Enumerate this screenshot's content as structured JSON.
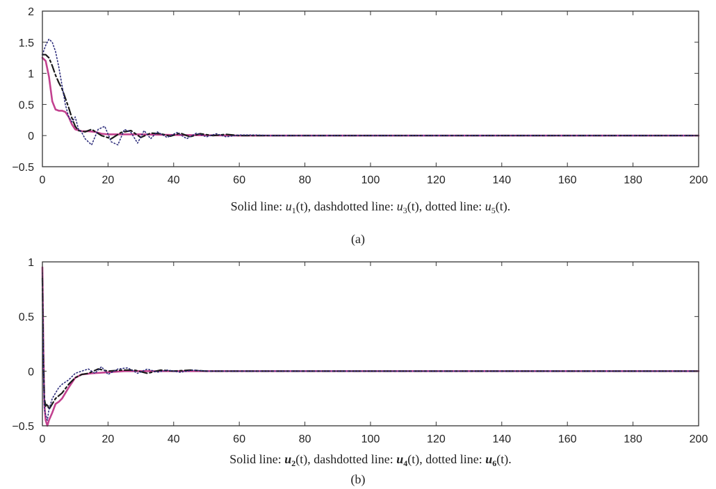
{
  "chart_data": [
    {
      "type": "line",
      "panel_label": "(a)",
      "xlabel": "Solid line: u1(t), dashdotted line: u3(t), dotted line: u5(t).",
      "xlabel_parts": {
        "p1": "Solid line: ",
        "v1": "u",
        "s1": "1",
        "a1": "(t)",
        "p2": ", dashdotted line: ",
        "v2": "u",
        "s2": "3",
        "a2": "(t)",
        "p3": ", dotted line: ",
        "v3": "u",
        "s3": "5",
        "a3": "(t).",
        "subs_bold": false
      },
      "xlim": [
        0,
        200
      ],
      "ylim": [
        -0.5,
        2
      ],
      "xticks": [
        0,
        20,
        40,
        60,
        80,
        100,
        120,
        140,
        160,
        180,
        200
      ],
      "yticks": [
        -0.5,
        0,
        0.5,
        1,
        1.5,
        2
      ],
      "ytick_labels": [
        "−0.5",
        "0",
        "0.5",
        "1",
        "1.5",
        "2"
      ],
      "series": [
        {
          "style": "solid",
          "color": "#c2418f",
          "x": [
            0,
            1,
            2,
            3,
            4,
            5,
            6,
            7,
            8,
            9,
            10,
            12,
            14,
            16,
            18,
            20,
            25,
            30,
            40,
            60,
            200
          ],
          "y": [
            1.25,
            1.2,
            0.95,
            0.55,
            0.42,
            0.4,
            0.4,
            0.38,
            0.3,
            0.18,
            0.1,
            0.07,
            0.07,
            0.06,
            0.03,
            0.02,
            0.02,
            0.02,
            0.01,
            0.0,
            0.0
          ]
        },
        {
          "style": "dashdot",
          "color": "#1a1a1a",
          "x": [
            0,
            1,
            2,
            3,
            4,
            5,
            6,
            7,
            8,
            9,
            10,
            11,
            13,
            15,
            18,
            21,
            24,
            27,
            30,
            33,
            36,
            39,
            42,
            45,
            48,
            52,
            56,
            60,
            70,
            80,
            200
          ],
          "y": [
            1.3,
            1.3,
            1.25,
            1.12,
            0.97,
            0.85,
            0.75,
            0.6,
            0.45,
            0.28,
            0.15,
            0.08,
            0.06,
            0.1,
            0.0,
            -0.05,
            0.05,
            0.08,
            -0.03,
            0.04,
            0.03,
            -0.01,
            0.04,
            -0.02,
            0.03,
            0.0,
            0.02,
            0.0,
            0.0,
            0.0,
            0.0
          ]
        },
        {
          "style": "dotted",
          "color": "#2b2b7a",
          "x": [
            0,
            1,
            2,
            3,
            4,
            5,
            6,
            7,
            8,
            9,
            10,
            11,
            12,
            13,
            15,
            17,
            19,
            21,
            23,
            25,
            27,
            29,
            31,
            33,
            35,
            38,
            41,
            44,
            47,
            50,
            53,
            56,
            60,
            65,
            70,
            200
          ],
          "y": [
            1.3,
            1.45,
            1.55,
            1.5,
            1.35,
            1.1,
            0.8,
            0.5,
            0.3,
            0.22,
            0.3,
            0.1,
            0.05,
            -0.05,
            -0.15,
            0.1,
            0.15,
            -0.1,
            -0.15,
            0.1,
            0.05,
            -0.12,
            0.08,
            -0.05,
            0.06,
            -0.03,
            0.05,
            -0.05,
            0.04,
            -0.02,
            0.03,
            -0.02,
            0.01,
            0.01,
            0.0,
            0.0
          ]
        }
      ]
    },
    {
      "type": "line",
      "panel_label": "(b)",
      "xlabel": "Solid line: u2(t), dashdotted line: u4(t), dotted line: u6(t).",
      "xlabel_parts": {
        "p1": "Solid line: ",
        "v1": "u",
        "s1": "2",
        "a1": "(t)",
        "p2": ", dashdotted line: ",
        "v2": "u",
        "s2": "4",
        "a2": "(t)",
        "p3": ", dotted line: ",
        "v3": "u",
        "s3": "6",
        "a3": "(t).",
        "subs_bold": true
      },
      "xlim": [
        0,
        200
      ],
      "ylim": [
        -0.5,
        1
      ],
      "xticks": [
        0,
        20,
        40,
        60,
        80,
        100,
        120,
        140,
        160,
        180,
        200
      ],
      "yticks": [
        -0.5,
        0,
        0.5,
        1
      ],
      "ytick_labels": [
        "−0.5",
        "0",
        "0.5",
        "1"
      ],
      "series": [
        {
          "style": "solid",
          "color": "#c2418f",
          "x": [
            0,
            0.3,
            0.6,
            1,
            1.5,
            2,
            3,
            4,
            5,
            6,
            8,
            10,
            12,
            15,
            20,
            25,
            30,
            40,
            60,
            200
          ],
          "y": [
            0.95,
            0.2,
            -0.3,
            -0.45,
            -0.5,
            -0.45,
            -0.38,
            -0.3,
            -0.28,
            -0.25,
            -0.15,
            -0.06,
            -0.03,
            -0.02,
            -0.01,
            0.0,
            0.0,
            0.0,
            0.0,
            0.0
          ]
        },
        {
          "style": "dashdot",
          "color": "#1a1a1a",
          "x": [
            0,
            0.3,
            0.6,
            1,
            1.5,
            2,
            3,
            4,
            6,
            8,
            10,
            12,
            14,
            17,
            20,
            24,
            28,
            32,
            36,
            40,
            45,
            50,
            55,
            60,
            70,
            80,
            200
          ],
          "y": [
            0.85,
            0.1,
            -0.25,
            -0.32,
            -0.3,
            -0.35,
            -0.3,
            -0.25,
            -0.2,
            -0.12,
            -0.06,
            -0.03,
            -0.02,
            0.02,
            0.0,
            0.01,
            0.01,
            -0.02,
            0.01,
            0.0,
            0.01,
            0.0,
            0.0,
            0.0,
            0.0,
            0.0,
            0.0
          ]
        },
        {
          "style": "dotted",
          "color": "#2b2b7a",
          "x": [
            0,
            0.3,
            0.6,
            1,
            1.5,
            2,
            3,
            4,
            5,
            6,
            8,
            10,
            12,
            14,
            16,
            18,
            20,
            23,
            26,
            29,
            32,
            35,
            38,
            42,
            46,
            50,
            55,
            60,
            70,
            200
          ],
          "y": [
            0.9,
            0.05,
            -0.35,
            -0.4,
            -0.45,
            -0.35,
            -0.25,
            -0.2,
            -0.15,
            -0.12,
            -0.08,
            -0.02,
            0.0,
            0.02,
            -0.02,
            0.04,
            -0.03,
            0.02,
            0.03,
            -0.02,
            0.02,
            -0.01,
            0.01,
            -0.01,
            0.01,
            0.0,
            0.0,
            0.0,
            0.0,
            0.0
          ]
        }
      ]
    }
  ]
}
